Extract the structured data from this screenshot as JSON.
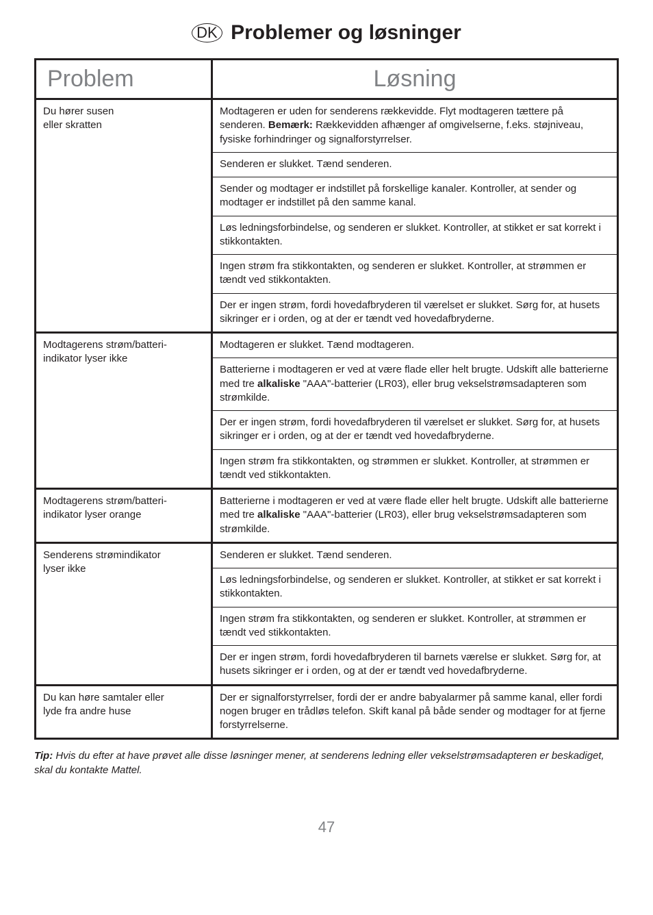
{
  "header": {
    "country_code": "DK",
    "title": "Problemer og løsninger"
  },
  "table": {
    "columns": [
      "Problem",
      "Løsning"
    ],
    "groups": [
      {
        "problem_lines": [
          "Du hører susen",
          "eller skratten"
        ],
        "solutions": [
          {
            "prefix": "Modtageren er uden for senderens rækkevidde. Flyt modtageren tættere på senderen. ",
            "bold": "Bemærk:",
            "rest": " Rækkevidden afhænger af omgivelserne, f.eks. støjniveau, fysiske forhindringer og signalforstyrrelser."
          },
          {
            "text": "Senderen er slukket. Tænd senderen."
          },
          {
            "text": "Sender og modtager er indstillet på forskellige kanaler. Kontroller, at sender og modtager er indstillet på den samme kanal."
          },
          {
            "text": "Løs ledningsforbindelse, og senderen er slukket. Kontroller, at stikket er sat korrekt i stikkontakten."
          },
          {
            "text": "Ingen strøm fra stikkontakten, og senderen er slukket. Kontroller, at strømmen er tændt ved stikkontakten."
          },
          {
            "text": "Der er ingen strøm, fordi hovedafbryderen til værelset er slukket. Sørg for, at husets sikringer er i orden, og at der er tændt ved hovedafbryderne."
          }
        ]
      },
      {
        "problem_lines": [
          "Modtagerens strøm/batteri-",
          "indikator lyser ikke"
        ],
        "solutions": [
          {
            "text": "Modtageren er slukket. Tænd modtageren."
          },
          {
            "prefix": "Batterierne i modtageren er ved at være flade eller helt brugte. Udskift alle batterierne med tre ",
            "bold": "alkaliske",
            "rest": " \"AAA\"-batterier (LR03), eller brug vekselstrømsadapteren som strømkilde."
          },
          {
            "text": "Der er ingen strøm, fordi hovedafbryderen til værelset er slukket. Sørg for, at husets sikringer er i orden, og at der er tændt ved hovedafbryderne."
          },
          {
            "text": "Ingen strøm fra stikkontakten, og strømmen er slukket. Kontroller, at strømmen er tændt ved stikkontakten."
          }
        ]
      },
      {
        "problem_lines": [
          "Modtagerens strøm/batteri-",
          "indikator lyser orange"
        ],
        "solutions": [
          {
            "prefix": "Batterierne i modtageren er ved at være flade eller helt brugte. Udskift alle batterierne med tre ",
            "bold": "alkaliske",
            "rest": " \"AAA\"-batterier (LR03), eller brug vekselstrømsadapteren som strømkilde."
          }
        ]
      },
      {
        "problem_lines": [
          "Senderens strømindikator",
          "lyser ikke"
        ],
        "solutions": [
          {
            "text": "Senderen er slukket. Tænd senderen."
          },
          {
            "text": "Løs ledningsforbindelse, og senderen er slukket. Kontroller, at stikket er sat korrekt i stikkontakten."
          },
          {
            "text": "Ingen strøm fra stikkontakten, og senderen er slukket. Kontroller, at strømmen er tændt ved stikkontakten."
          },
          {
            "text": "Der er ingen strøm, fordi hovedafbryderen til barnets værelse er slukket. Sørg for, at husets sikringer er i orden, og at der er tændt ved hovedafbryderne."
          }
        ]
      },
      {
        "problem_lines": [
          "Du kan høre samtaler eller",
          "lyde fra andre huse"
        ],
        "solutions": [
          {
            "text": "Der er signalforstyrrelser, fordi der er andre babyalarmer på samme kanal, eller fordi nogen bruger en trådløs telefon. Skift kanal på både sender og modtager for at fjerne forstyrrelserne."
          }
        ]
      }
    ]
  },
  "tip": {
    "label": "Tip:",
    "text": " Hvis du efter at have prøvet alle disse løsninger mener, at senderens ledning eller vekselstrømsadapteren er beskadiget, skal du kontakte Mattel."
  },
  "page_number": "47"
}
